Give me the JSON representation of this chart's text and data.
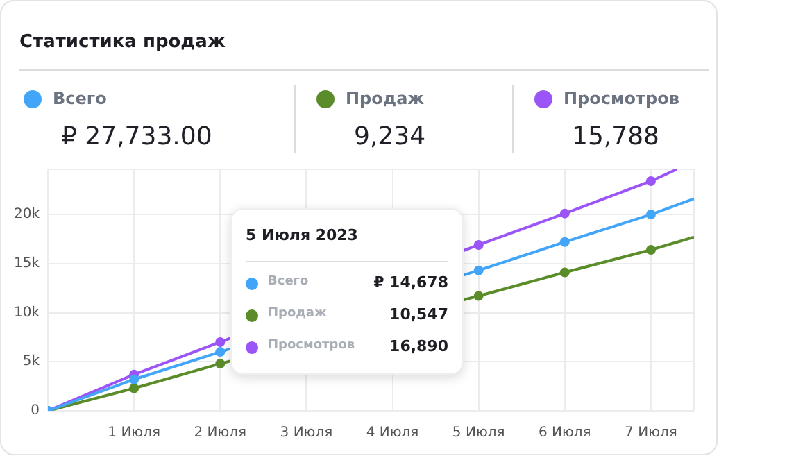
{
  "chart_data": {
    "type": "line",
    "title": "Статистика продаж",
    "x": [
      0,
      1,
      2,
      3,
      4,
      5,
      6,
      7,
      7.5
    ],
    "xlim": [
      0,
      7.5
    ],
    "xticks": [
      {
        "value": 0,
        "label": null
      },
      {
        "value": 1,
        "label": "1 Июля"
      },
      {
        "value": 2,
        "label": "2 Июля"
      },
      {
        "value": 3,
        "label": "3 Июля"
      },
      {
        "value": 4,
        "label": "4 Июля"
      },
      {
        "value": 5,
        "label": "5 Июля"
      },
      {
        "value": 6,
        "label": "6 Июля"
      },
      {
        "value": 7,
        "label": "7 Июля"
      },
      {
        "value": 7.5,
        "label": null
      }
    ],
    "ylim": [
      0,
      24600
    ],
    "yticks": [
      0,
      {
        "value": 5000,
        "label": "5k"
      },
      {
        "value": 10000,
        "label": "10k"
      },
      {
        "value": 15000,
        "label": "15k"
      },
      {
        "value": 20000,
        "label": "20k"
      },
      {
        "value": 24600,
        "label": null
      }
    ],
    "series": [
      {
        "name": "Всего",
        "color": "#42a5f8",
        "values": [
          0,
          3200,
          6000,
          null,
          null,
          14300,
          17200,
          20000,
          21600
        ]
      },
      {
        "name": "Продаж",
        "color": "#5b8c2a",
        "values": [
          0,
          2300,
          4800,
          null,
          null,
          11700,
          14100,
          16400,
          17700
        ]
      },
      {
        "name": "Просмотров",
        "color": "#9b55f7",
        "x": [
          0,
          1,
          2,
          3,
          4,
          5,
          6,
          7,
          7.3
        ],
        "values": [
          0,
          3700,
          7000,
          null,
          null,
          16900,
          20100,
          23400,
          24600
        ]
      }
    ],
    "totals": [
      "₽ 27,733.00",
      "9,234",
      "15,788"
    ],
    "annotations": [
      "5 Июля 2023",
      "₽ 14,678",
      "10,547",
      "16,890"
    ],
    "grid": true,
    "legend": "bottom left",
    "marker": "circle",
    "line_style": "solid"
  }
}
